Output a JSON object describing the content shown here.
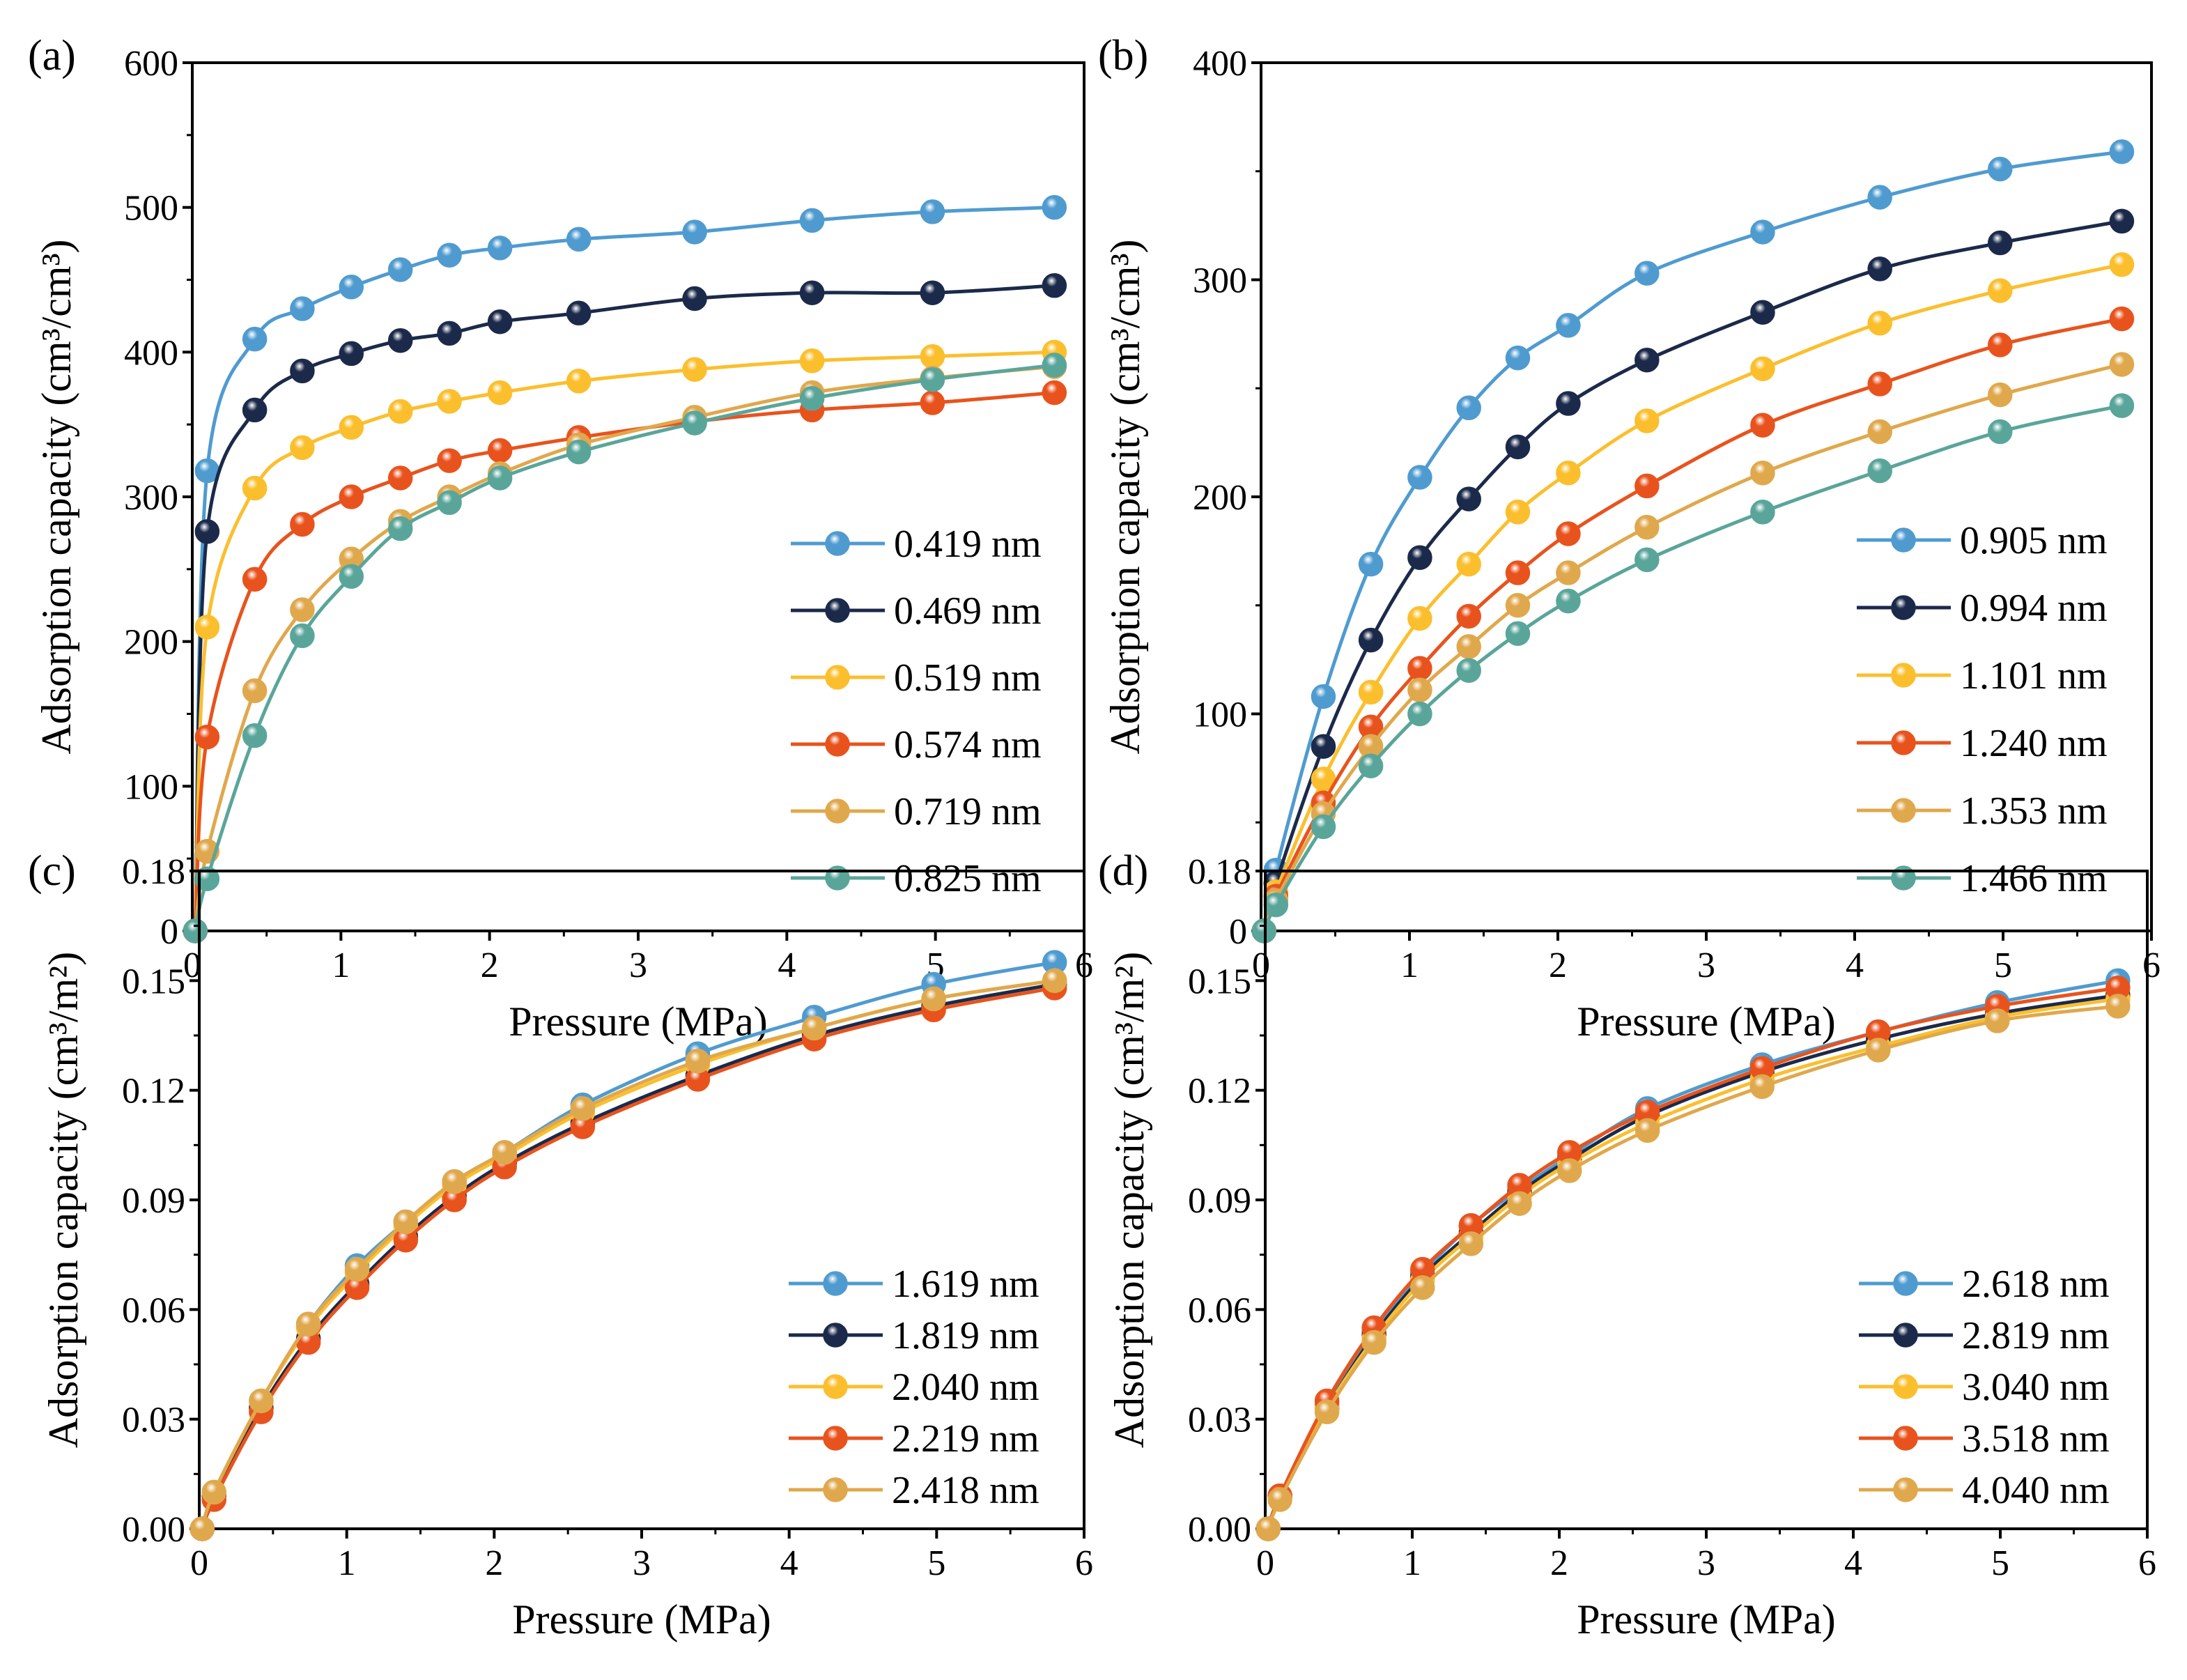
{
  "chart_data": [
    {
      "panel": "(a)",
      "type": "line",
      "xlabel": "Pressure (MPa)",
      "ylabel": "Adsorption capacity (cm³/cm³)",
      "xlim": [
        0,
        6
      ],
      "ylim": [
        0,
        600
      ],
      "xticks": [
        0,
        1,
        2,
        3,
        4,
        5,
        6
      ],
      "yticks": [
        0,
        100,
        200,
        300,
        400,
        500,
        600
      ],
      "legend_position": "bottom-right",
      "x": [
        0.02,
        0.1,
        0.42,
        0.74,
        1.07,
        1.4,
        1.73,
        2.07,
        2.6,
        3.38,
        4.17,
        4.98,
        5.8
      ],
      "series": [
        {
          "name": "0.419 nm",
          "color": "#4f9bd0",
          "values": [
            0,
            318,
            409,
            430,
            445,
            457,
            467,
            472,
            478,
            483,
            491,
            497,
            500
          ]
        },
        {
          "name": "0.469 nm",
          "color": "#1b2a4a",
          "values": [
            0,
            276,
            360,
            387,
            399,
            408,
            413,
            421,
            427,
            437,
            441,
            441,
            446
          ]
        },
        {
          "name": "0.519 nm",
          "color": "#fbbf2e",
          "values": [
            0,
            210,
            306,
            334,
            348,
            359,
            366,
            372,
            380,
            388,
            394,
            397,
            400
          ]
        },
        {
          "name": "0.574 nm",
          "color": "#e8531d",
          "values": [
            0,
            134,
            243,
            281,
            300,
            313,
            325,
            332,
            341,
            352,
            360,
            365,
            372
          ]
        },
        {
          "name": "0.719 nm",
          "color": "#e0a84c",
          "values": [
            0,
            55,
            166,
            222,
            257,
            283,
            300,
            316,
            336,
            355,
            372,
            382,
            390
          ]
        },
        {
          "name": "0.825 nm",
          "color": "#5aa59a",
          "values": [
            0,
            36,
            135,
            204,
            245,
            278,
            296,
            313,
            331,
            351,
            368,
            381,
            391
          ]
        }
      ]
    },
    {
      "panel": "(b)",
      "type": "line",
      "xlabel": "Pressure (MPa)",
      "ylabel": "Adsorption capacity (cm³/cm³)",
      "xlim": [
        0,
        6
      ],
      "ylim": [
        0,
        400
      ],
      "xticks": [
        0,
        1,
        2,
        3,
        4,
        5,
        6
      ],
      "yticks": [
        0,
        100,
        200,
        300,
        400
      ],
      "legend_position": "bottom-right",
      "x": [
        0.02,
        0.1,
        0.42,
        0.74,
        1.07,
        1.4,
        1.73,
        2.07,
        2.6,
        3.38,
        4.17,
        4.98,
        5.8
      ],
      "series": [
        {
          "name": "0.905 nm",
          "color": "#4f9bd0",
          "values": [
            0,
            28,
            108,
            169,
            209,
            241,
            264,
            279,
            303,
            322,
            338,
            351,
            359
          ]
        },
        {
          "name": "0.994 nm",
          "color": "#1b2a4a",
          "values": [
            0,
            22,
            85,
            134,
            172,
            199,
            223,
            243,
            263,
            285,
            305,
            317,
            327
          ]
        },
        {
          "name": "1.101 nm",
          "color": "#fbbf2e",
          "values": [
            0,
            18,
            70,
            110,
            144,
            169,
            193,
            211,
            235,
            259,
            280,
            295,
            307
          ]
        },
        {
          "name": "1.240 nm",
          "color": "#e8531d",
          "values": [
            0,
            16,
            59,
            94,
            121,
            145,
            165,
            183,
            205,
            233,
            252,
            270,
            282
          ]
        },
        {
          "name": "1.353 nm",
          "color": "#e0a84c",
          "values": [
            0,
            14,
            54,
            85,
            111,
            131,
            150,
            165,
            186,
            211,
            230,
            247,
            261
          ]
        },
        {
          "name": "1.466 nm",
          "color": "#5aa59a",
          "values": [
            0,
            12,
            48,
            76,
            100,
            120,
            137,
            152,
            171,
            193,
            212,
            230,
            242
          ]
        }
      ]
    },
    {
      "panel": "(c)",
      "type": "line",
      "xlabel": "Pressure (MPa)",
      "ylabel": "Adsorption capacity (cm³/m²)",
      "xlim": [
        0,
        6
      ],
      "ylim": [
        0,
        0.18
      ],
      "xticks": [
        0,
        1,
        2,
        3,
        4,
        5,
        6
      ],
      "yticks": [
        0.0,
        0.03,
        0.06,
        0.09,
        0.12,
        0.15,
        0.18
      ],
      "ytick_decimals": 2,
      "legend_position": "bottom-right",
      "x": [
        0.02,
        0.1,
        0.42,
        0.74,
        1.07,
        1.4,
        1.73,
        2.07,
        2.6,
        3.38,
        4.17,
        4.98,
        5.8
      ],
      "series": [
        {
          "name": "1.619 nm",
          "color": "#4f9bd0",
          "values": [
            0,
            0.01,
            0.035,
            0.056,
            0.072,
            0.084,
            0.095,
            0.103,
            0.116,
            0.13,
            0.14,
            0.149,
            0.155
          ]
        },
        {
          "name": "1.819 nm",
          "color": "#1b2a4a",
          "values": [
            0,
            0.009,
            0.033,
            0.052,
            0.067,
            0.08,
            0.091,
            0.1,
            0.111,
            0.124,
            0.135,
            0.143,
            0.149
          ]
        },
        {
          "name": "2.040 nm",
          "color": "#fbbf2e",
          "values": [
            0,
            0.01,
            0.035,
            0.055,
            0.07,
            0.083,
            0.094,
            0.102,
            0.114,
            0.127,
            0.137,
            0.145,
            0.15
          ]
        },
        {
          "name": "2.219 nm",
          "color": "#e8531d",
          "values": [
            0,
            0.008,
            0.032,
            0.051,
            0.066,
            0.079,
            0.09,
            0.099,
            0.11,
            0.123,
            0.134,
            0.142,
            0.148
          ]
        },
        {
          "name": "2.418 nm",
          "color": "#e0a84c",
          "values": [
            0,
            0.01,
            0.035,
            0.056,
            0.071,
            0.084,
            0.095,
            0.103,
            0.115,
            0.128,
            0.137,
            0.145,
            0.15
          ]
        }
      ]
    },
    {
      "panel": "(d)",
      "type": "line",
      "xlabel": "Pressure (MPa)",
      "ylabel": "Adsorption capacity (cm³/m²)",
      "xlim": [
        0,
        6
      ],
      "ylim": [
        0,
        0.18
      ],
      "xticks": [
        0,
        1,
        2,
        3,
        4,
        5,
        6
      ],
      "yticks": [
        0.0,
        0.03,
        0.06,
        0.09,
        0.12,
        0.15,
        0.18
      ],
      "ytick_decimals": 2,
      "legend_position": "bottom-right",
      "x": [
        0.02,
        0.1,
        0.42,
        0.74,
        1.07,
        1.4,
        1.73,
        2.07,
        2.6,
        3.38,
        4.17,
        4.98,
        5.8
      ],
      "series": [
        {
          "name": "2.618 nm",
          "color": "#4f9bd0",
          "values": [
            0,
            0.009,
            0.034,
            0.054,
            0.07,
            0.083,
            0.093,
            0.102,
            0.115,
            0.127,
            0.136,
            0.144,
            0.15
          ]
        },
        {
          "name": "2.819 nm",
          "color": "#1b2a4a",
          "values": [
            0,
            0.009,
            0.033,
            0.053,
            0.069,
            0.081,
            0.092,
            0.101,
            0.113,
            0.125,
            0.134,
            0.141,
            0.146
          ]
        },
        {
          "name": "3.040 nm",
          "color": "#fbbf2e",
          "values": [
            0,
            0.009,
            0.033,
            0.052,
            0.068,
            0.08,
            0.091,
            0.1,
            0.111,
            0.123,
            0.132,
            0.14,
            0.145
          ]
        },
        {
          "name": "3.518 nm",
          "color": "#e8531d",
          "values": [
            0,
            0.009,
            0.035,
            0.055,
            0.071,
            0.083,
            0.094,
            0.103,
            0.114,
            0.126,
            0.136,
            0.143,
            0.148
          ]
        },
        {
          "name": "4.040 nm",
          "color": "#e0a84c",
          "values": [
            0,
            0.008,
            0.032,
            0.051,
            0.066,
            0.078,
            0.089,
            0.098,
            0.109,
            0.121,
            0.131,
            0.139,
            0.143
          ]
        }
      ]
    }
  ]
}
